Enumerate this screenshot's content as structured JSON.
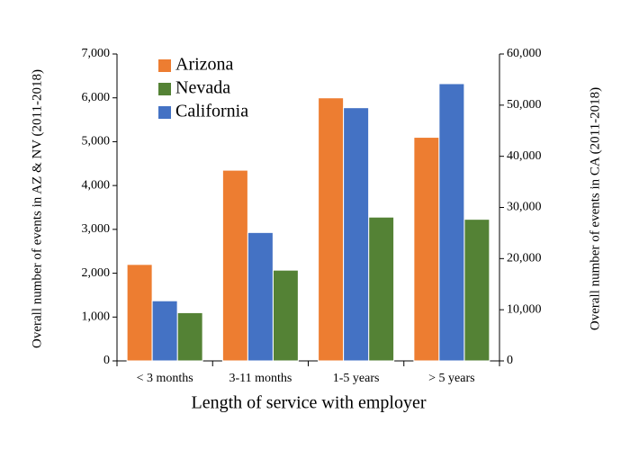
{
  "chart_data": {
    "type": "bar",
    "x_label": "Length of service with employer",
    "y_label": "Overall number of events in AZ & NV (2011-2018)",
    "y2_label": "Overall number of events in CA (2011-2018)",
    "categories": [
      "< 3 months",
      "3-11 months",
      "1-5 years",
      "> 5 years"
    ],
    "series": [
      {
        "name": "Arizona",
        "color": "#ed7d31",
        "values": [
          2200,
          4350,
          6000,
          5100
        ]
      },
      {
        "name": "Nevada",
        "color": "#548235",
        "values": [
          1100,
          2070,
          3280,
          3230
        ]
      },
      {
        "name": "California",
        "color": "#4472c4",
        "axis": "y2",
        "values": [
          11750,
          25100,
          49500,
          54200
        ]
      }
    ],
    "ylim": [
      0,
      7000
    ],
    "yticks": [
      0,
      {
        "value": 1000,
        "label": "1,000"
      },
      {
        "value": 2000,
        "label": "2,000"
      },
      {
        "value": 3000,
        "label": "3,000"
      },
      {
        "value": 4000,
        "label": "4,000"
      },
      {
        "value": 5000,
        "label": "5,000"
      },
      {
        "value": 6000,
        "label": "6,000"
      },
      {
        "value": 7000,
        "label": "7,000"
      }
    ],
    "y2lim": [
      0,
      60000
    ],
    "y2ticks": [
      0,
      {
        "value": 10000,
        "label": "10,000"
      },
      {
        "value": 20000,
        "label": "20,000"
      },
      {
        "value": 30000,
        "label": "30,000"
      },
      {
        "value": 40000,
        "label": "40,000"
      },
      {
        "value": 50000,
        "label": "50,000"
      },
      {
        "value": 60000,
        "label": "60,000"
      }
    ],
    "legend": "upper left",
    "grid": false
  }
}
